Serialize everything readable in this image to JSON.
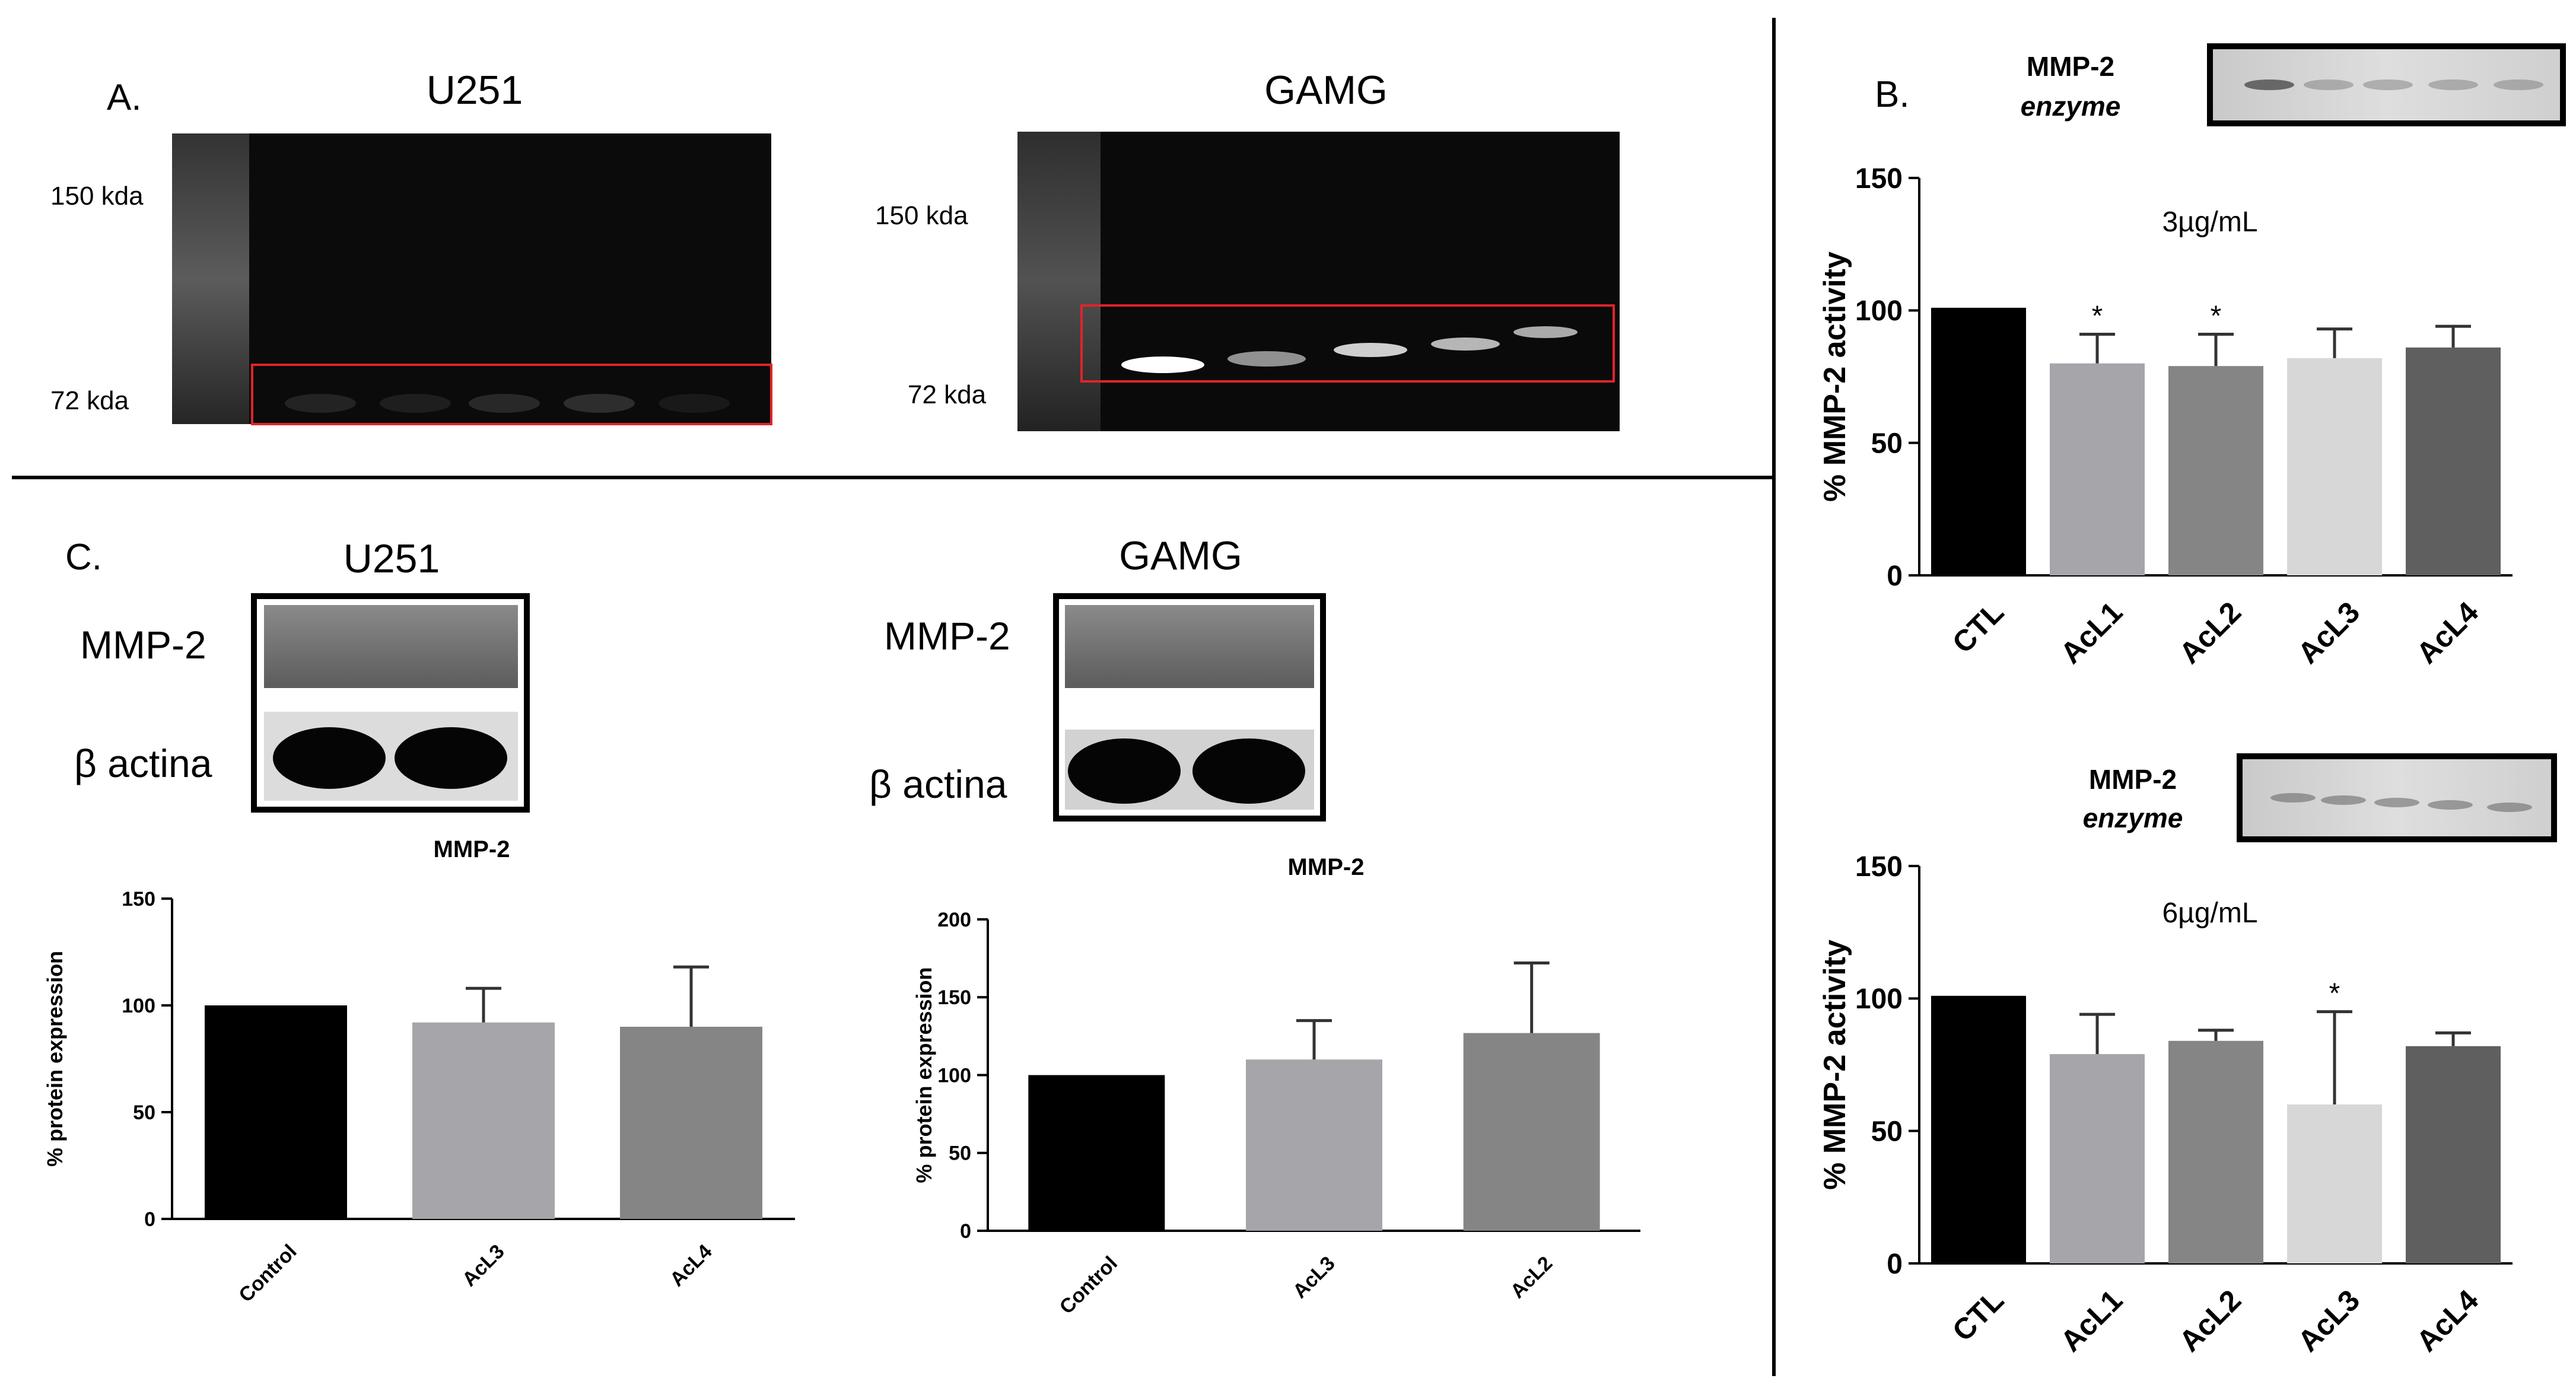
{
  "panel_a": {
    "label": "A.",
    "u251": {
      "title": "U251",
      "marker_150": "150 kda",
      "marker_72": "72 kda",
      "band_intensity": [
        0.1,
        0.08,
        0.12,
        0.14,
        0.06
      ]
    },
    "gamg": {
      "title": "GAMG",
      "marker_150": "150 kda",
      "marker_72": "72 kda",
      "band_intensity": [
        1.0,
        0.55,
        0.8,
        0.7,
        0.65
      ]
    }
  },
  "panel_b": {
    "label": "B."
  },
  "panel_c": {
    "label": "C.",
    "u251": {
      "title": "U251",
      "blot_label_1": "MMP-2",
      "blot_label_2": "β actina"
    },
    "gamg": {
      "title": "GAMG",
      "blot_label_1": "MMP-2",
      "blot_label_2": "β actina"
    }
  },
  "colors": {
    "black": "#000000",
    "grey_light": "#a5a5aa",
    "grey_mid": "#858585",
    "grey_pale": "#d7d7d7",
    "grey_dark": "#5f5f5f",
    "box_red": "#e0242a"
  },
  "chart_data": [
    {
      "id": "b_top",
      "type": "bar",
      "inset_label_1": "MMP-2",
      "inset_label_2": "enzyme",
      "annotation": "3µg/mL",
      "ylabel": "% MMP-2 activity",
      "xlabel": "",
      "categories": [
        "CTL",
        "AcL1",
        "AcL2",
        "AcL3",
        "AcL4"
      ],
      "values": [
        101,
        80,
        79,
        82,
        86
      ],
      "errors": [
        0,
        11,
        12,
        11,
        8
      ],
      "significance": [
        "",
        "*",
        "*",
        "",
        ""
      ],
      "ylim": [
        0,
        150
      ],
      "yticks": [
        "0",
        "50",
        "100",
        "150"
      ]
    },
    {
      "id": "b_bottom",
      "type": "bar",
      "inset_label_1": "MMP-2",
      "inset_label_2": "enzyme",
      "annotation": "6µg/mL",
      "ylabel": "% MMP-2 activity",
      "xlabel": "",
      "categories": [
        "CTL",
        "AcL1",
        "AcL2",
        "AcL3",
        "AcL4"
      ],
      "values": [
        101,
        79,
        84,
        60,
        82
      ],
      "errors": [
        0,
        15,
        4,
        35,
        5
      ],
      "significance": [
        "",
        "",
        "",
        "*",
        ""
      ],
      "ylim": [
        0,
        150
      ],
      "yticks": [
        "0",
        "50",
        "100",
        "150"
      ]
    },
    {
      "id": "c_u251",
      "type": "bar",
      "title": "MMP-2",
      "ylabel": "% protein expression",
      "xlabel": "",
      "categories": [
        "Control",
        "AcL3",
        "AcL4"
      ],
      "values": [
        100,
        92,
        90
      ],
      "errors": [
        0,
        16,
        28
      ],
      "ylim": [
        0,
        150
      ],
      "yticks": [
        "0",
        "50",
        "100",
        "150"
      ]
    },
    {
      "id": "c_gamg",
      "type": "bar",
      "title": "MMP-2",
      "ylabel": "% protein expression",
      "xlabel": "",
      "categories": [
        "Control",
        "AcL3",
        "AcL2"
      ],
      "values": [
        100,
        110,
        127
      ],
      "errors": [
        0,
        25,
        45
      ],
      "ylim": [
        0,
        200
      ],
      "yticks": [
        "0",
        "50",
        "100",
        "150",
        "200"
      ]
    }
  ]
}
